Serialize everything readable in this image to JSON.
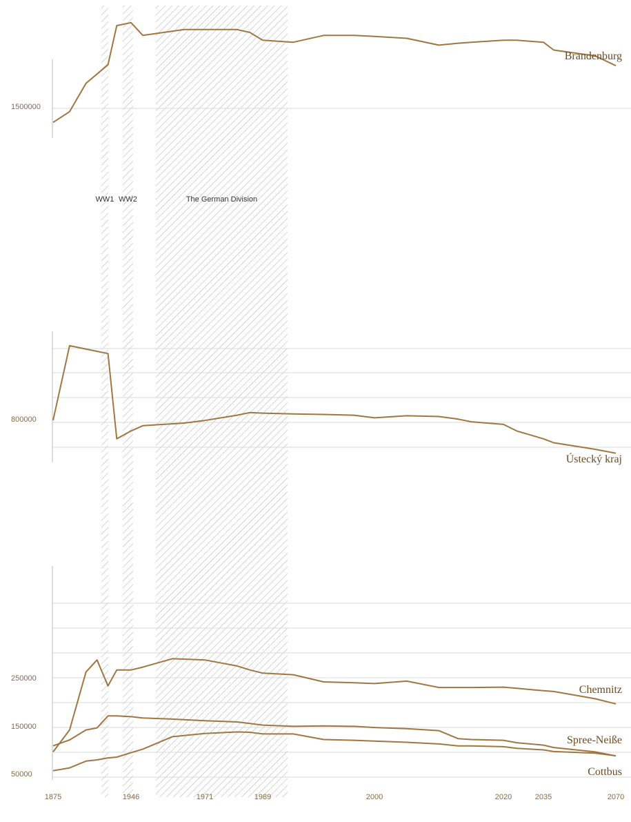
{
  "chart_data": {
    "type": "line",
    "colors": {
      "line": "#a07640",
      "hatch": "#b9b9b9",
      "grid": "#d8d8d8",
      "label": "#6b4a22"
    },
    "x_ticks": [
      "1875",
      "1946",
      "1971",
      "1989",
      "2000",
      "2020",
      "2035",
      "2070"
    ],
    "periods": [
      {
        "label": "WW1",
        "start": 1914,
        "end": 1918
      },
      {
        "label": "WW2",
        "start": 1939,
        "end": 1945
      },
      {
        "label": "The German Division",
        "start": 1949,
        "end": 1990
      }
    ],
    "panels": [
      {
        "ytick_labels": [
          "1500000"
        ],
        "ylim": [
          1300000,
          2500000
        ],
        "series": [
          {
            "name": "Brandenburg",
            "x": [
              1875,
              1890,
              1905,
              1925,
              1933,
              1946,
              1950,
              1964,
              1971,
              1981,
              1985,
              1989,
              1992,
              1995,
              1998,
              2000,
              2005,
              2010,
              2013,
              2015,
              2020,
              2025,
              2035,
              2040,
              2060,
              2070
            ],
            "y": [
              1460000,
              1570000,
              1860000,
              2050000,
              2450000,
              2480000,
              2350000,
              2410000,
              2410000,
              2410000,
              2380000,
              2300000,
              2280000,
              2350000,
              2350000,
              2340000,
              2320000,
              2250000,
              2270000,
              2280000,
              2300000,
              2300000,
              2280000,
              2200000,
              2140000,
              2040000
            ]
          }
        ]
      },
      {
        "ytick_labels": [
          "800000"
        ],
        "ylim": [
          650000,
          1150000
        ],
        "series": [
          {
            "name": "Ústecký kraj",
            "x": [
              1875,
              1890,
              1925,
              1933,
              1946,
              1950,
              1964,
              1971,
              1981,
              1985,
              1989,
              1992,
              1995,
              1998,
              2000,
              2005,
              2010,
              2013,
              2015,
              2020,
              2025,
              2035,
              2040,
              2060,
              2070
            ],
            "y": [
              811000,
              1095000,
              1065000,
              740000,
              770000,
              790000,
              800000,
              810000,
              830000,
              840000,
              838000,
              835000,
              833000,
              830000,
              820000,
              828000,
              825000,
              815000,
              805000,
              795000,
              770000,
              740000,
              725000,
              700000,
              685000
            ]
          }
        ]
      },
      {
        "ytick_labels": [
          "250000",
          "150000",
          "50000"
        ],
        "ylim": [
          15000,
          550000
        ],
        "series": [
          {
            "name": "Chemnitz",
            "x": [
              1875,
              1890,
              1905,
              1915,
              1925,
              1933,
              1946,
              1950,
              1960,
              1971,
              1981,
              1985,
              1989,
              1992,
              1995,
              1998,
              2000,
              2005,
              2010,
              2013,
              2015,
              2020,
              2025,
              2035,
              2040,
              2060,
              2070
            ],
            "y": [
              85000,
              140000,
              285000,
              315000,
              250000,
              290000,
              290000,
              297000,
              318000,
              315000,
              300000,
              290000,
              282000,
              278000,
              260000,
              258000,
              256000,
              262000,
              246000,
              246000,
              246000,
              247000,
              244000,
              238000,
              236000,
              218000,
              205000
            ]
          },
          {
            "name": "Spree-Neiße",
            "x": [
              1875,
              1890,
              1905,
              1915,
              1925,
              1933,
              1946,
              1950,
              1960,
              1971,
              1981,
              1985,
              1989,
              1992,
              1995,
              1998,
              2000,
              2005,
              2010,
              2013,
              2015,
              2020,
              2025,
              2035,
              2040,
              2060,
              2070
            ],
            "y": [
              100000,
              115000,
              140000,
              145000,
              175000,
              175000,
              173000,
              170000,
              167000,
              163000,
              160000,
              156000,
              152000,
              149000,
              150000,
              149000,
              146000,
              143000,
              138000,
              118000,
              116000,
              114000,
              108000,
              102000,
              96000,
              85000,
              75000
            ]
          },
          {
            "name": "Cottbus",
            "x": [
              1875,
              1890,
              1905,
              1915,
              1925,
              1933,
              1946,
              1950,
              1960,
              1971,
              1981,
              1985,
              1989,
              1992,
              1995,
              1998,
              2000,
              2005,
              2010,
              2013,
              2015,
              2020,
              2025,
              2035,
              2040,
              2060,
              2070
            ],
            "y": [
              38000,
              45000,
              62000,
              65000,
              70000,
              72000,
              83000,
              92000,
              123000,
              131000,
              135000,
              134000,
              130000,
              130000,
              116000,
              114000,
              112000,
              109000,
              105000,
              100000,
              100000,
              98000,
              94000,
              90000,
              86000,
              82000,
              75000
            ]
          }
        ]
      }
    ]
  }
}
